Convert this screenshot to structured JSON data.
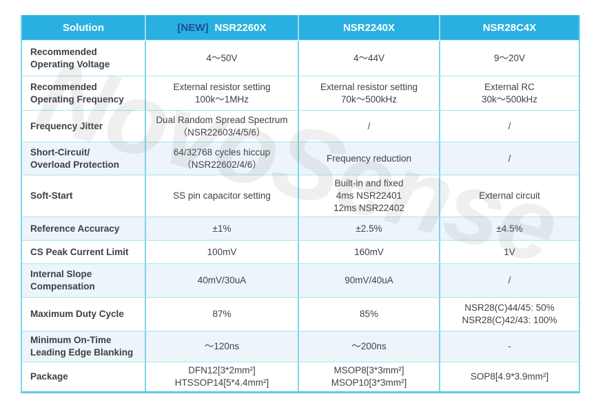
{
  "watermark": "NovoSense",
  "colors": {
    "header_bg": "#29b0e0",
    "badge_blue": "#1a4e9d",
    "grid_line": "#7ed4ee",
    "tinted_row_bg": "#edf5fa",
    "body_text": "#3d4248"
  },
  "header": {
    "columns": [
      {
        "label": "Solution"
      },
      {
        "badge": "[NEW]",
        "label": "NSR2260X"
      },
      {
        "label": "NSR2240X"
      },
      {
        "label": "NSR28C4X"
      }
    ]
  },
  "rows": [
    {
      "label": [
        "Recommended",
        "Operating Voltage"
      ],
      "cells": [
        [
          "4～50V"
        ],
        [
          "4～44V"
        ],
        [
          "9～20V"
        ]
      ]
    },
    {
      "label": [
        "Recommended",
        "Operating Frequency"
      ],
      "cells": [
        [
          "External resistor setting",
          "100k～1MHz"
        ],
        [
          "External resistor setting",
          "70k～500kHz"
        ],
        [
          "External RC",
          "30k～500kHz"
        ]
      ]
    },
    {
      "label": [
        "Frequency Jitter"
      ],
      "cells": [
        [
          "Dual Random Spread Spectrum",
          "（NSR22603/4/5/6）"
        ],
        [
          "/"
        ],
        [
          "/"
        ]
      ]
    },
    {
      "label": [
        "Short-Circuit/",
        "Overload Protection"
      ],
      "cells": [
        [
          "64/32768 cycles hiccup",
          "（NSR22602/4/6）"
        ],
        [
          "Frequency reduction"
        ],
        [
          "/"
        ]
      ]
    },
    {
      "label": [
        "Soft-Start"
      ],
      "cells": [
        [
          "SS pin capacitor setting"
        ],
        [
          "Built-in and fixed",
          "4ms NSR22401",
          "12ms NSR22402"
        ],
        [
          "External circuit"
        ]
      ]
    },
    {
      "label": [
        "Reference Accuracy"
      ],
      "cells": [
        [
          "±1%"
        ],
        [
          "±2.5%"
        ],
        [
          "±4.5%"
        ]
      ]
    },
    {
      "label": [
        "CS Peak Current Limit"
      ],
      "cells": [
        [
          "100mV"
        ],
        [
          "160mV"
        ],
        [
          "1V"
        ]
      ]
    },
    {
      "label": [
        "Internal Slope",
        "Compensation"
      ],
      "cells": [
        [
          "40mV/30uA"
        ],
        [
          "90mV/40uA"
        ],
        [
          "/"
        ]
      ]
    },
    {
      "label": [
        "Maximum Duty Cycle"
      ],
      "cells": [
        [
          "87%"
        ],
        [
          "85%"
        ],
        [
          "NSR28(C)44/45: 50%",
          "NSR28(C)42/43: 100%"
        ]
      ]
    },
    {
      "label": [
        "Minimum On-Time",
        "Leading Edge Blanking"
      ],
      "cells": [
        [
          "～120ns"
        ],
        [
          "～200ns"
        ],
        [
          "-"
        ]
      ]
    },
    {
      "label": [
        "Package"
      ],
      "cells": [
        [
          "DFN12[3*2mm²]",
          "HTSSOP14[5*4.4mm²]"
        ],
        [
          "MSOP8[3*3mm²]",
          "MSOP10[3*3mm²]"
        ],
        [
          "SOP8[4.9*3.9mm²]"
        ]
      ]
    }
  ]
}
